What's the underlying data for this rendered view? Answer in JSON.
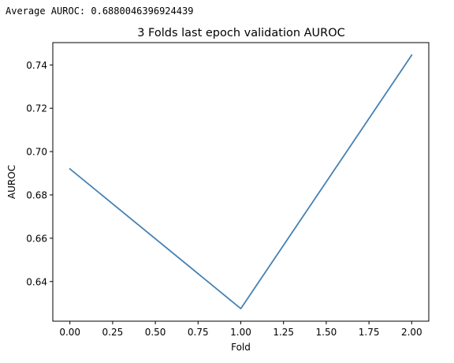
{
  "output": {
    "average_text": "Average AUROC: 0.6880046396924439"
  },
  "chart_data": {
    "type": "line",
    "title": "3 Folds last epoch validation AUROC",
    "xlabel": "Fold",
    "ylabel": "AUROC",
    "x": [
      0,
      1,
      2
    ],
    "series": [
      {
        "values": [
          0.692,
          0.6275,
          0.7445
        ],
        "color": "#4682b4"
      }
    ],
    "xlim": [
      -0.1,
      2.1
    ],
    "ylim": [
      0.6217,
      0.7503
    ],
    "xticks": [
      0.0,
      0.25,
      0.5,
      0.75,
      1.0,
      1.25,
      1.5,
      1.75,
      2.0
    ],
    "xtick_labels": [
      "0.00",
      "0.25",
      "0.50",
      "0.75",
      "1.00",
      "1.25",
      "1.50",
      "1.75",
      "2.00"
    ],
    "yticks": [
      0.64,
      0.66,
      0.68,
      0.7,
      0.72,
      0.74
    ],
    "ytick_labels": [
      "0.64",
      "0.66",
      "0.68",
      "0.70",
      "0.72",
      "0.74"
    ],
    "grid": false,
    "legend": false
  }
}
